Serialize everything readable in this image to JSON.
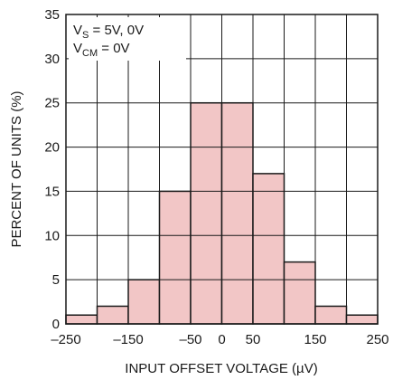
{
  "chart_data": {
    "type": "bar",
    "title": "",
    "xlabel_prefix": "INPUT OFFSET VOLTAGE (",
    "xlabel_unit": "µV",
    "xlabel_suffix": ")",
    "ylabel": "PERCENT OF UNITS (%)",
    "bin_width": 50,
    "bin_centers": [
      -225,
      -175,
      -125,
      -75,
      -25,
      25,
      75,
      125,
      175,
      225
    ],
    "values": [
      1,
      2,
      5,
      15,
      25,
      25,
      17,
      7,
      2,
      1
    ],
    "xlim": [
      -250,
      250
    ],
    "ylim": [
      0,
      35
    ],
    "x_ticks": [
      {
        "value": -250,
        "label": "–250"
      },
      {
        "value": -150,
        "label": "–150"
      },
      {
        "value": -50,
        "label": "–50"
      },
      {
        "value": 0,
        "label": "0"
      },
      {
        "value": 50,
        "label": "50"
      },
      {
        "value": 150,
        "label": "150"
      },
      {
        "value": 250,
        "label": "250"
      }
    ],
    "x_grid": [
      -250,
      -200,
      -150,
      -100,
      -50,
      0,
      50,
      100,
      150,
      200,
      250
    ],
    "y_ticks": [
      0,
      5,
      10,
      15,
      20,
      25,
      30,
      35
    ],
    "grid": true,
    "bar_color": "#f2c6c6",
    "annotation": {
      "line1": {
        "main": "V",
        "sub": "S",
        "rest": " = 5V, 0V"
      },
      "line2": {
        "main": "V",
        "sub": "CM",
        "rest": " = 0V"
      }
    }
  }
}
